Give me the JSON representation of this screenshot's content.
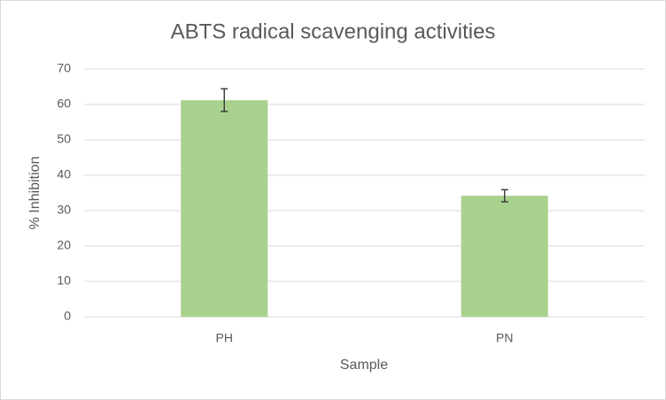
{
  "chart_data": {
    "type": "bar",
    "title": "ABTS radical scavenging activities",
    "x_label": "Sample",
    "y_label": "% Inhibition",
    "categories": [
      "PH",
      "PN"
    ],
    "values": [
      61.2,
      34.2
    ],
    "errors": [
      3.2,
      1.7
    ],
    "color": "#a9d18e",
    "error_color": "#404040",
    "ylim": [
      0,
      70
    ],
    "yticks": [
      0,
      10,
      20,
      30,
      40,
      50,
      60,
      70
    ],
    "grid": true
  }
}
